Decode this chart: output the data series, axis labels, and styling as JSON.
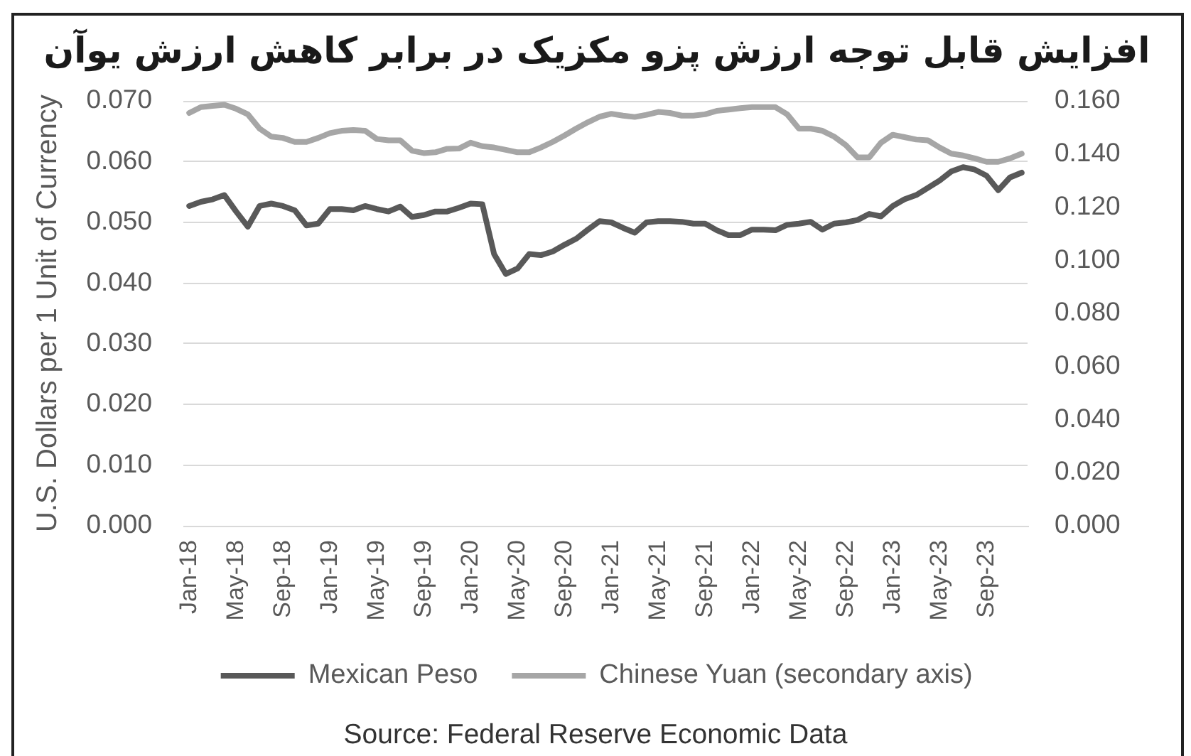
{
  "chart_data": {
    "type": "line",
    "title": "افزایش قابل توجه ارزش پزو مکزیک در برابر کاهش ارزش یوآن",
    "ylabel": "U.S. Dollars per 1 Unit of Currency",
    "annotations": [
      "Source: Federal Reserve Economic Data"
    ],
    "categories": [
      "Jan-18",
      null,
      null,
      null,
      "May-18",
      null,
      null,
      null,
      "Sep-18",
      null,
      null,
      null,
      "Jan-19",
      null,
      null,
      null,
      "May-19",
      null,
      null,
      null,
      "Sep-19",
      null,
      null,
      null,
      "Jan-20",
      null,
      null,
      null,
      "May-20",
      null,
      null,
      null,
      "Sep-20",
      null,
      null,
      null,
      "Jan-21",
      null,
      null,
      null,
      "May-21",
      null,
      null,
      null,
      "Sep-21",
      null,
      null,
      null,
      "Jan-22",
      null,
      null,
      null,
      "May-22",
      null,
      null,
      null,
      "Sep-22",
      null,
      null,
      null,
      "Jan-23",
      null,
      null,
      null,
      "May-23",
      null,
      null,
      null,
      "Sep-23",
      null,
      null,
      null
    ],
    "series": [
      {
        "name": "Mexican Peso",
        "color": "#595959",
        "values": [
          0.0527,
          0.0534,
          0.0538,
          0.0545,
          0.0518,
          0.0493,
          0.0527,
          0.0531,
          0.0527,
          0.052,
          0.0495,
          0.0498,
          0.0522,
          0.0522,
          0.052,
          0.0527,
          0.0522,
          0.0518,
          0.0526,
          0.0509,
          0.0512,
          0.0518,
          0.0518,
          0.0524,
          0.0531,
          0.053,
          0.0448,
          0.0415,
          0.0424,
          0.0448,
          0.0446,
          0.0452,
          0.0463,
          0.0473,
          0.0488,
          0.0502,
          0.05,
          0.0491,
          0.0483,
          0.05,
          0.0502,
          0.0502,
          0.0501,
          0.0498,
          0.0498,
          0.0487,
          0.0479,
          0.0479,
          0.0488,
          0.0488,
          0.0487,
          0.0496,
          0.0498,
          0.0501,
          0.0488,
          0.0498,
          0.05,
          0.0504,
          0.0514,
          0.051,
          0.0527,
          0.0538,
          0.0545,
          0.0557,
          0.0569,
          0.0584,
          0.0591,
          0.0587,
          0.0577,
          0.0553,
          0.0574,
          0.0582
        ]
      },
      {
        "name": "Chinese Yuan (secondary axis)",
        "color": "#a6a6a6",
        "axis": "y2",
        "values": [
          0.1555,
          0.1577,
          0.1582,
          0.1586,
          0.1571,
          0.155,
          0.1496,
          0.1466,
          0.1461,
          0.1446,
          0.1446,
          0.1461,
          0.1479,
          0.1488,
          0.1491,
          0.1488,
          0.1457,
          0.1452,
          0.1452,
          0.1413,
          0.1404,
          0.1407,
          0.142,
          0.1421,
          0.1443,
          0.143,
          0.1425,
          0.1416,
          0.1407,
          0.1407,
          0.1425,
          0.1446,
          0.147,
          0.1496,
          0.152,
          0.1541,
          0.1552,
          0.1545,
          0.154,
          0.1548,
          0.1559,
          0.1555,
          0.1545,
          0.1545,
          0.155,
          0.1563,
          0.1568,
          0.1573,
          0.1577,
          0.1577,
          0.1577,
          0.155,
          0.1496,
          0.1496,
          0.1488,
          0.1466,
          0.1434,
          0.1388,
          0.1388,
          0.1443,
          0.1473,
          0.1464,
          0.1455,
          0.1452,
          0.1425,
          0.1402,
          0.1395,
          0.1384,
          0.1371,
          0.1371,
          0.1384,
          0.1402
        ]
      }
    ],
    "ylim": [
      0,
      0.07
    ],
    "yticks": [
      {
        "value": 0,
        "label": "0.000"
      },
      {
        "value": 0.01,
        "label": "0.010"
      },
      {
        "value": 0.02,
        "label": "0.020"
      },
      {
        "value": 0.03,
        "label": "0.030"
      },
      {
        "value": 0.04,
        "label": "0.040"
      },
      {
        "value": 0.05,
        "label": "0.050"
      },
      {
        "value": 0.06,
        "label": "0.060"
      },
      {
        "value": 0.07,
        "label": "0.070"
      }
    ],
    "y2lim": [
      0,
      0.16
    ],
    "y2ticks": [
      {
        "value": 0,
        "label": "0.000"
      },
      {
        "value": 0.02,
        "label": "0.020"
      },
      {
        "value": 0.04,
        "label": "0.040"
      },
      {
        "value": 0.06,
        "label": "0.060"
      },
      {
        "value": 0.08,
        "label": "0.080"
      },
      {
        "value": 0.1,
        "label": "0.100"
      },
      {
        "value": 0.12,
        "label": "0.120"
      },
      {
        "value": 0.14,
        "label": "0.140"
      },
      {
        "value": 0.16,
        "label": "0.160"
      }
    ],
    "grid": "y",
    "legend": "bottom",
    "marker": "none",
    "line_style": "solid"
  }
}
